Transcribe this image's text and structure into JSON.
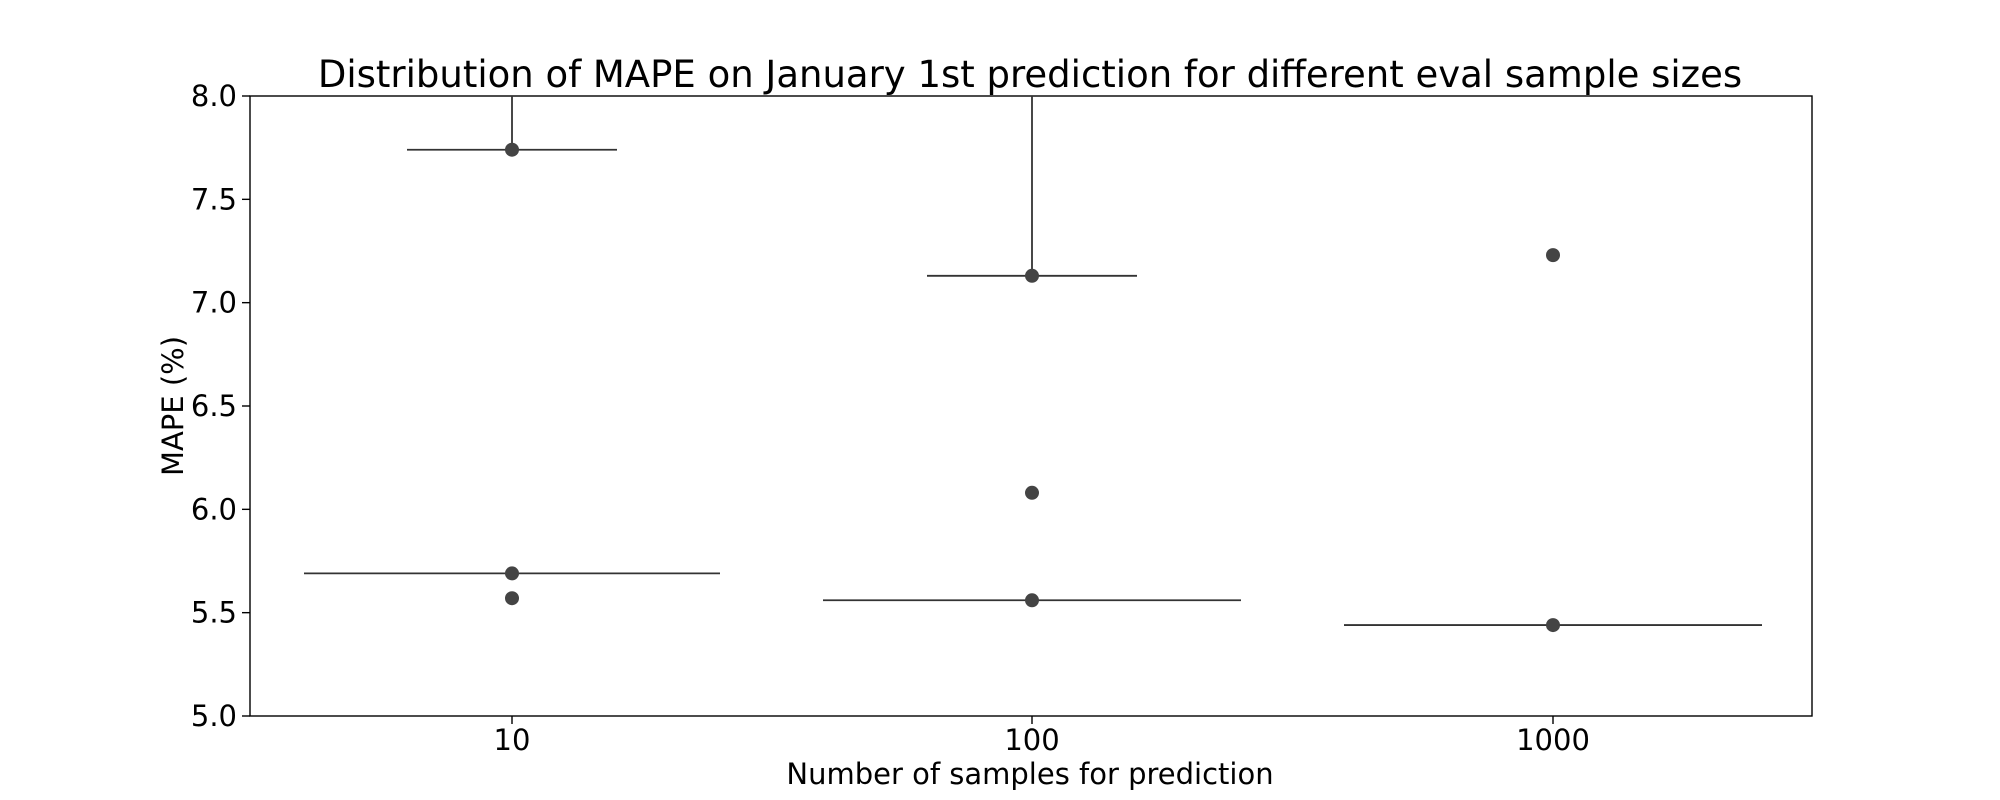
{
  "chart_data": {
    "type": "boxplot",
    "title": "Distribution of MAPE on January 1st prediction for different eval sample sizes",
    "xlabel": "Number of samples for prediction",
    "ylabel": "MAPE (%)",
    "ylim": [
      5.0,
      8.0
    ],
    "yticks": [
      "5.0",
      "5.5",
      "6.0",
      "6.5",
      "7.0",
      "7.5",
      "8.0"
    ],
    "categories": [
      "10",
      "100",
      "1000"
    ],
    "grid": false,
    "legend": "none",
    "colors": {
      "marker": "#444444",
      "line": "#333333",
      "axis": "#000000"
    },
    "series": [
      {
        "category": "10",
        "points": [
          5.57,
          5.69,
          7.74
        ],
        "box_lines": [
          5.69,
          7.74
        ],
        "upper_whisker_from": 7.74
      },
      {
        "category": "100",
        "points": [
          5.56,
          6.08,
          7.13
        ],
        "box_lines": [
          5.56,
          7.13
        ],
        "upper_whisker_from": 7.13
      },
      {
        "category": "1000",
        "points": [
          5.44,
          7.23
        ],
        "box_lines": [
          5.44
        ],
        "upper_whisker_from": null
      }
    ]
  }
}
